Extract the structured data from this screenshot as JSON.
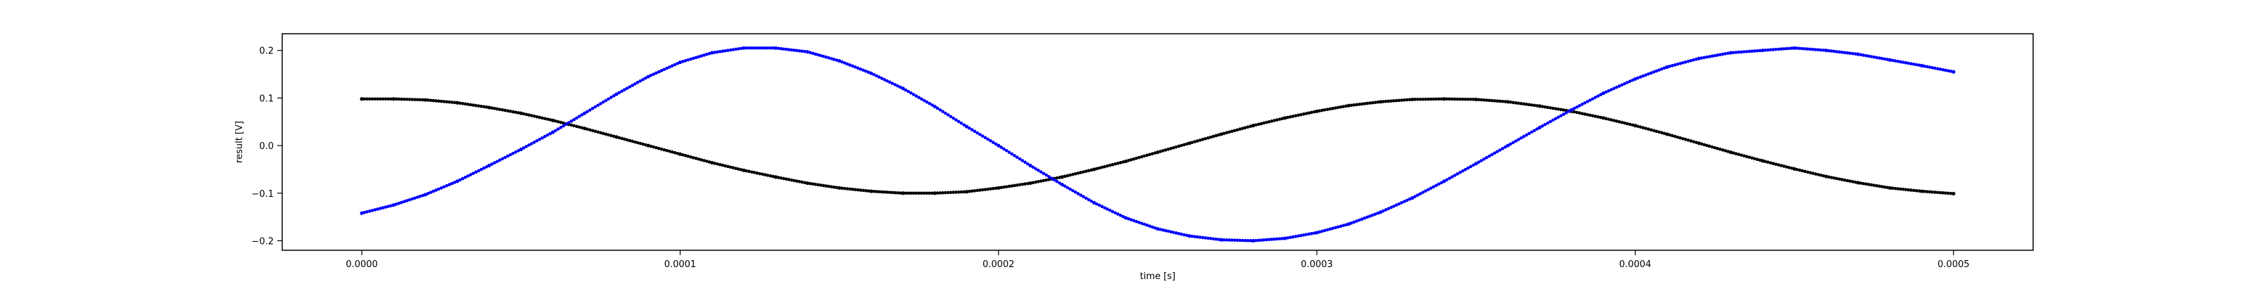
{
  "chart_data": {
    "type": "scatter",
    "title": "",
    "xlabel": "time [s]",
    "ylabel": "result [V]",
    "xlim": [
      -2.5e-05,
      0.000525
    ],
    "ylim": [
      -0.22,
      0.235
    ],
    "grid": false,
    "legend": "none",
    "x_ticks": [
      0.0,
      0.0001,
      0.0002,
      0.0003,
      0.0004,
      0.0005
    ],
    "x_tick_labels": [
      "0.0000",
      "0.0001",
      "0.0002",
      "0.0003",
      "0.0004",
      "0.0005"
    ],
    "y_ticks": [
      -0.2,
      -0.1,
      0.0,
      0.1,
      0.2
    ],
    "y_tick_labels": [
      "−0.2",
      "−0.1",
      "0.0",
      "0.1",
      "0.2"
    ],
    "series": [
      {
        "color": "#000000",
        "marker": "dot",
        "x": [
          0.0,
          1e-05,
          2e-05,
          3e-05,
          4e-05,
          5e-05,
          6e-05,
          7e-05,
          8e-05,
          9e-05,
          0.0001,
          0.00011,
          0.00012,
          0.00013,
          0.00014,
          0.00015,
          0.00016,
          0.00017,
          0.00018,
          0.00019,
          0.0002,
          0.00021,
          0.00022,
          0.00023,
          0.00024,
          0.00025,
          0.00026,
          0.00027,
          0.00028,
          0.00029,
          0.0003,
          0.00031,
          0.00032,
          0.00033,
          0.00034,
          0.00035,
          0.00036,
          0.00037,
          0.00038,
          0.00039,
          0.0004,
          0.00041,
          0.00042,
          0.00043,
          0.00044,
          0.00045,
          0.00046,
          0.00047,
          0.00048,
          0.00049,
          0.0005
        ],
        "y": [
          0.098,
          0.098,
          0.096,
          0.09,
          0.08,
          0.068,
          0.053,
          0.036,
          0.018,
          0.0,
          -0.018,
          -0.036,
          -0.052,
          -0.066,
          -0.079,
          -0.089,
          -0.096,
          -0.1,
          -0.1,
          -0.097,
          -0.089,
          -0.079,
          -0.066,
          -0.05,
          -0.033,
          -0.014,
          0.005,
          0.024,
          0.042,
          0.058,
          0.072,
          0.084,
          0.092,
          0.097,
          0.098,
          0.097,
          0.092,
          0.083,
          0.072,
          0.058,
          0.042,
          0.024,
          0.005,
          -0.014,
          -0.032,
          -0.049,
          -0.065,
          -0.078,
          -0.089,
          -0.096,
          -0.101
        ]
      },
      {
        "color": "#0000ff",
        "marker": "dot",
        "x": [
          0.0,
          1e-05,
          2e-05,
          3e-05,
          4e-05,
          5e-05,
          6e-05,
          7e-05,
          8e-05,
          9e-05,
          0.0001,
          0.00011,
          0.00012,
          0.00013,
          0.00014,
          0.00015,
          0.00016,
          0.00017,
          0.00018,
          0.00019,
          0.0002,
          0.00021,
          0.00022,
          0.00023,
          0.00024,
          0.00025,
          0.00026,
          0.00027,
          0.00028,
          0.00029,
          0.0003,
          0.00031,
          0.00032,
          0.00033,
          0.00034,
          0.00035,
          0.00036,
          0.00037,
          0.00038,
          0.00039,
          0.0004,
          0.00041,
          0.00042,
          0.00043,
          0.00044,
          0.00045,
          0.00046,
          0.00047,
          0.00048,
          0.00049,
          0.0005
        ],
        "y": [
          -0.142,
          -0.125,
          -0.103,
          -0.075,
          -0.042,
          -0.008,
          0.028,
          0.068,
          0.108,
          0.145,
          0.175,
          0.195,
          0.205,
          0.205,
          0.197,
          0.178,
          0.152,
          0.12,
          0.082,
          0.04,
          0.0,
          -0.042,
          -0.082,
          -0.12,
          -0.152,
          -0.175,
          -0.19,
          -0.198,
          -0.2,
          -0.195,
          -0.183,
          -0.165,
          -0.14,
          -0.11,
          -0.075,
          -0.038,
          0.0,
          0.038,
          0.075,
          0.11,
          0.14,
          0.165,
          0.183,
          0.195,
          0.2,
          0.205,
          0.2,
          0.192,
          0.18,
          0.168,
          0.155
        ]
      }
    ]
  }
}
